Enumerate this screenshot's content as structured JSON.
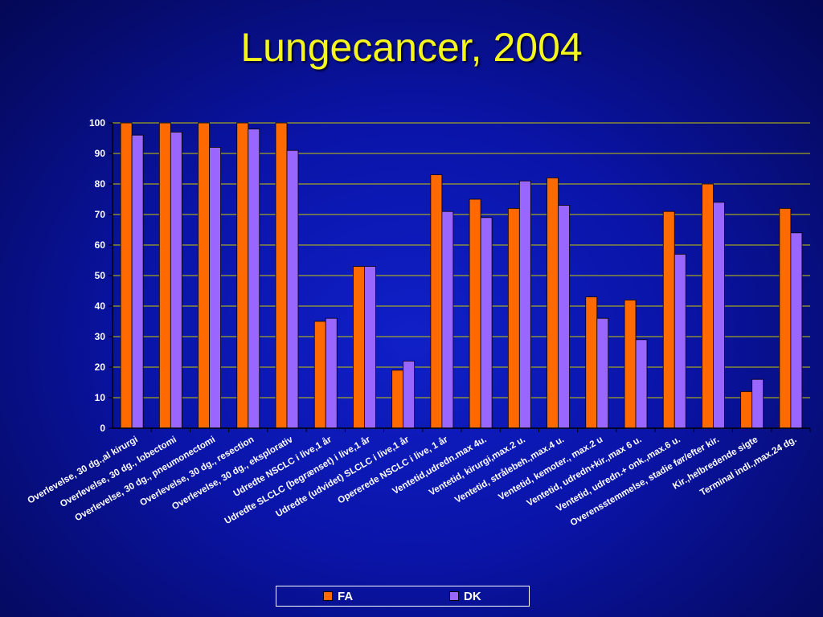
{
  "slide": {
    "title": "Lungecancer, 2004"
  },
  "colors": {
    "fa": "#ff6a00",
    "dk": "#9966ff",
    "axis_text": "#ffffff",
    "gridline": "#c8c800"
  },
  "chart_data": {
    "type": "bar",
    "title": "Lungecancer, 2004",
    "xlabel": "",
    "ylabel": "",
    "ylim": [
      0,
      100
    ],
    "yticks": [
      0,
      10,
      20,
      30,
      40,
      50,
      60,
      70,
      80,
      90,
      100
    ],
    "grid": true,
    "legend_position": "bottom",
    "categories": [
      "Overlevelse, 30 dg.,al kirurgi",
      "Overlevelse, 30 dg., lobectomi",
      "Overlevelse, 30 dg., pneumonectomi",
      "Overlevelse, 30 dg., resection",
      "Overlevelse, 30 dg., eksplorativ",
      "Udredte NSCLC i live,1 år",
      "Udredte SLCLC (begrænset) i live,1 år",
      "Udredte (udvidet) SLCLC i live,1 år",
      "Opererede NSCLC i live, 1 år",
      "Ventetid,udredn.max 4u.",
      "Ventetid, kirurgi,max.2 u.",
      "Ventetid, strålebeh.,max.4 u.",
      "Ventetid, kemoter., max.2 u",
      "Ventetid, udredn+kir.,max 6 u.",
      "Ventetid, udredn.+ onk.,max.6 u.",
      "Overensstemmelse, stadie før/efter kir.",
      "Kir.,helbredende sigte",
      "Terminal indl.,max.24 dg."
    ],
    "series": [
      {
        "name": "FA",
        "values": [
          100,
          100,
          100,
          100,
          100,
          35,
          53,
          19,
          83,
          75,
          72,
          82,
          43,
          42,
          71,
          80,
          12,
          72
        ]
      },
      {
        "name": "DK",
        "values": [
          96,
          97,
          92,
          98,
          91,
          36,
          53,
          22,
          71,
          69,
          81,
          73,
          36,
          29,
          57,
          74,
          16,
          64
        ]
      }
    ]
  }
}
